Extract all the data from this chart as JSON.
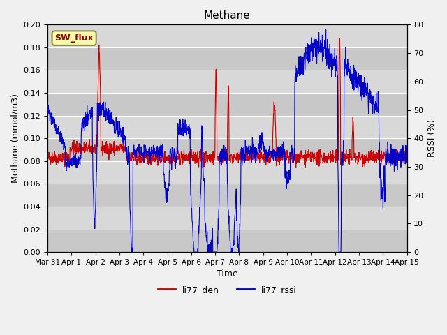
{
  "title": "Methane",
  "ylabel_left": "Methane (mmol/m3)",
  "ylabel_right": "RSSI (%)",
  "xlabel": "Time",
  "ylim_left": [
    0.0,
    0.2
  ],
  "ylim_right": [
    0,
    80
  ],
  "yticks_left": [
    0.0,
    0.02,
    0.04,
    0.06,
    0.08,
    0.1,
    0.12,
    0.14,
    0.16,
    0.18,
    0.2
  ],
  "yticks_right": [
    0,
    10,
    20,
    30,
    40,
    50,
    60,
    70,
    80
  ],
  "xtick_labels": [
    "Mar 31",
    "Apr 1",
    "Apr 2",
    "Apr 3",
    "Apr 4",
    "Apr 5",
    "Apr 6",
    "Apr 7",
    "Apr 8",
    "Apr 9",
    "Apr 10",
    "Apr 11",
    "Apr 12",
    "Apr 13",
    "Apr 14",
    "Apr 15"
  ],
  "color_red": "#cc0000",
  "color_blue": "#0000cc",
  "bg_color": "#e8e8e8",
  "plot_bg": "#d8d8d8",
  "legend_label_red": "li77_den",
  "legend_label_blue": "li77_rssi",
  "sw_flux_label": "SW_flux",
  "sw_flux_bg": "#ffffaa",
  "sw_flux_border": "#888844"
}
